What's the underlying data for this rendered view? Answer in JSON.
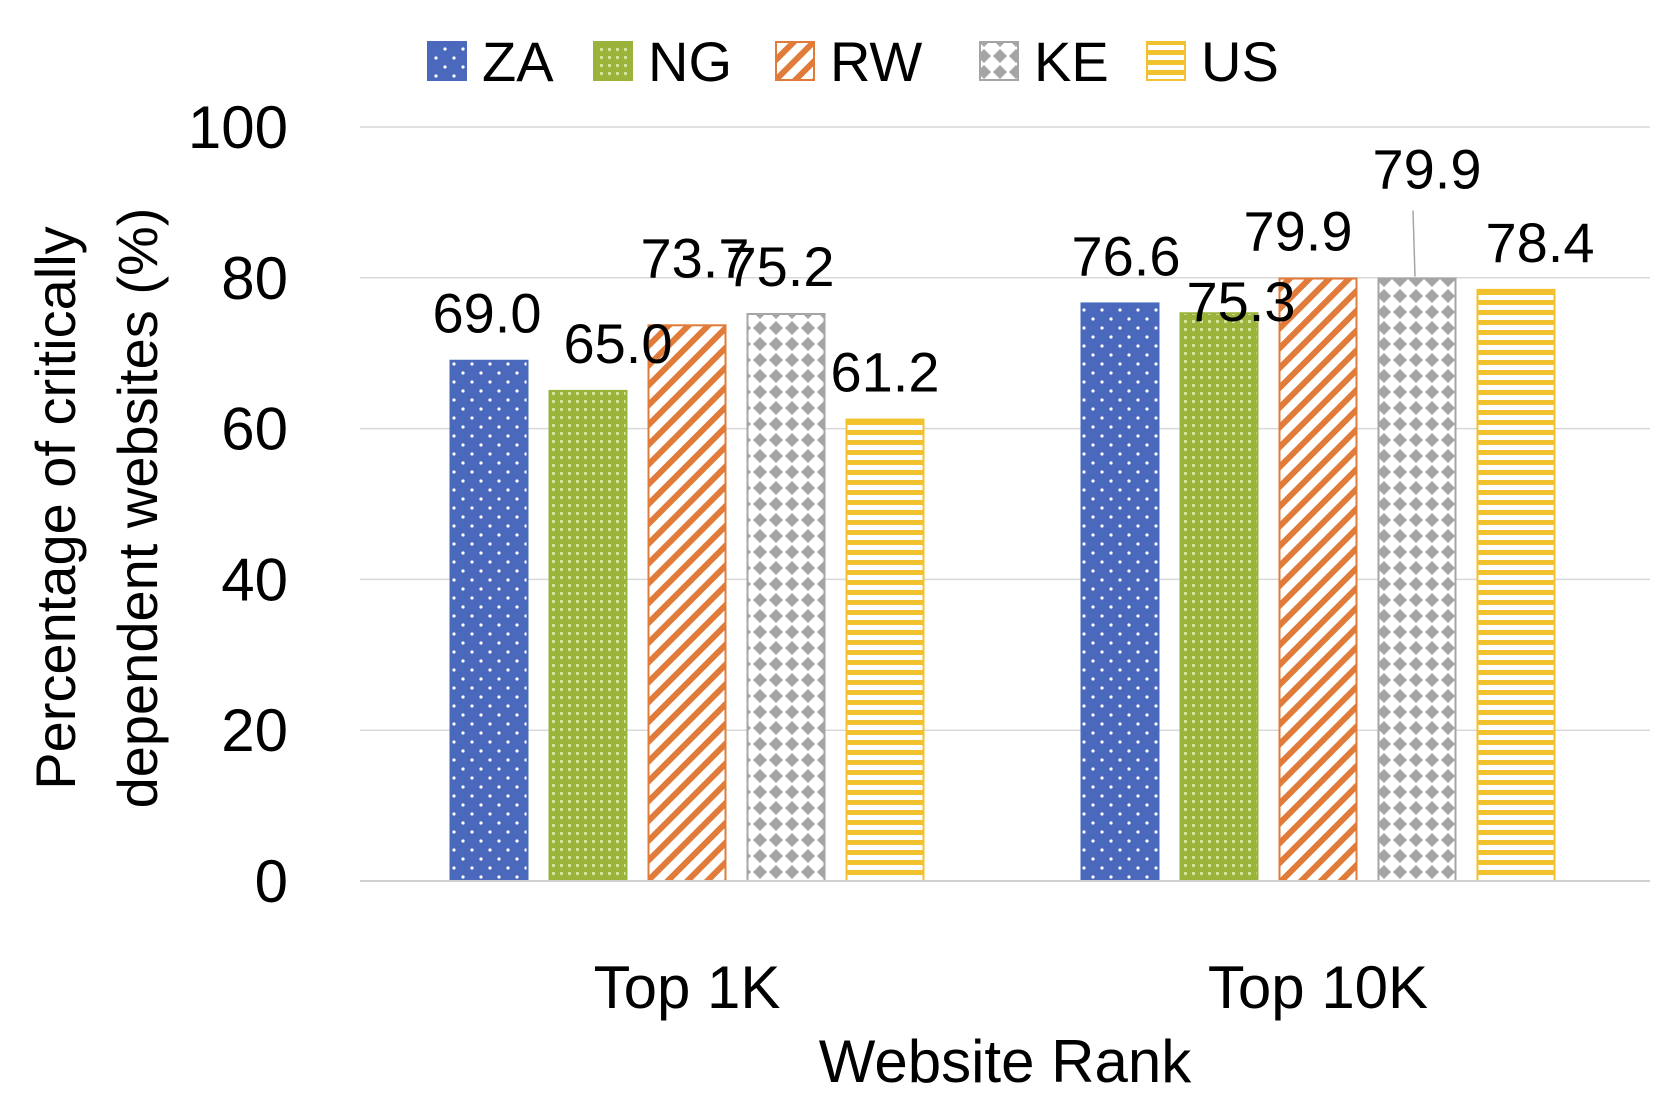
{
  "chart_data": {
    "type": "bar",
    "title": "",
    "xlabel": "Website Rank",
    "ylabel_lines": [
      "Percentage of  critically",
      "dependent websites (%)"
    ],
    "categories": [
      "Top 1K",
      "Top 10K"
    ],
    "ylim": [
      0,
      100
    ],
    "yticks": [
      "0",
      "20",
      "40",
      "60",
      "80",
      "100"
    ],
    "grid": true,
    "legend_position": "top",
    "series": [
      {
        "name": "ZA",
        "values": [
          69.0,
          76.6
        ],
        "labels": [
          "69.0",
          "76.6"
        ],
        "color": "#4a69bd",
        "pattern": "dots"
      },
      {
        "name": "NG",
        "values": [
          65.0,
          75.3
        ],
        "labels": [
          "65.0",
          "75.3"
        ],
        "color": "#9ab33a",
        "pattern": "small-grid"
      },
      {
        "name": "RW",
        "values": [
          73.7,
          79.9
        ],
        "labels": [
          "73.7",
          "79.9"
        ],
        "color": "#e07b39",
        "pattern": "diagonal-stripes"
      },
      {
        "name": "KE",
        "values": [
          75.2,
          79.9
        ],
        "labels": [
          "75.2",
          "79.9"
        ],
        "color": "#a5a5a5",
        "pattern": "diamonds"
      },
      {
        "name": "US",
        "values": [
          61.2,
          78.4
        ],
        "labels": [
          "61.2",
          "78.4"
        ],
        "color": "#f2c12e",
        "pattern": "horizontal-stripes"
      }
    ]
  }
}
